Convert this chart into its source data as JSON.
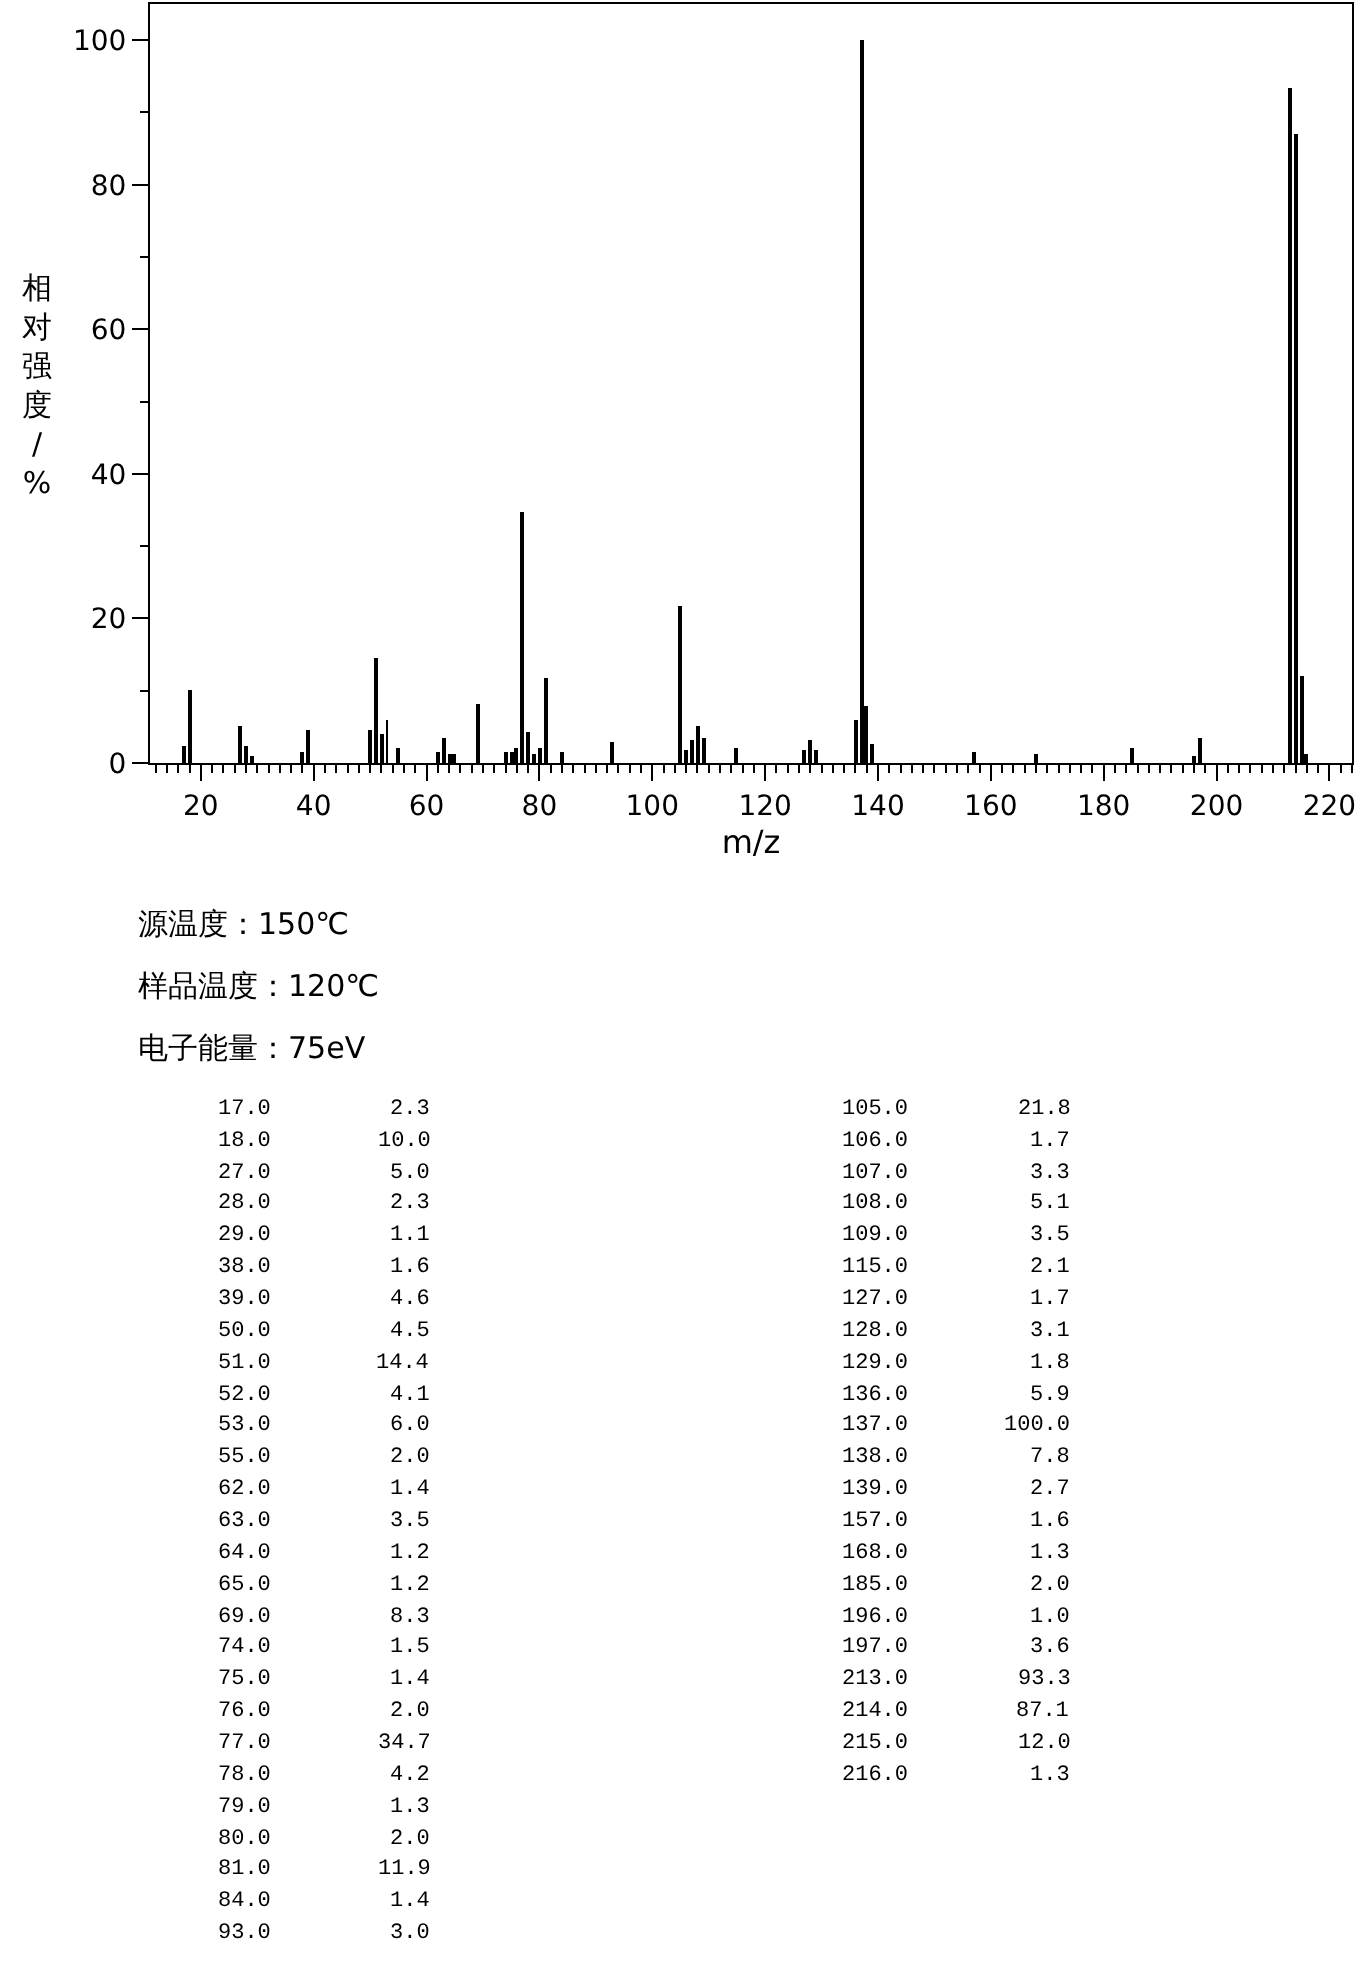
{
  "chart_data": [
    {
      "type": "bar",
      "xlabel": "m/z",
      "ylabel": "相对强度/%",
      "color": "#000000",
      "x": [
        17,
        18,
        27,
        28,
        29,
        38,
        39,
        50,
        51,
        52,
        53,
        55,
        62,
        63,
        64,
        65,
        69,
        74,
        75,
        76,
        77,
        78,
        79,
        80,
        81,
        84,
        93,
        105,
        106,
        107,
        108,
        109,
        115,
        127,
        128,
        129,
        136,
        137,
        138,
        139,
        157,
        168,
        185,
        196,
        197,
        213,
        214,
        215,
        216
      ],
      "values": [
        2.3,
        10.0,
        5.0,
        2.3,
        1.1,
        1.6,
        4.6,
        4.5,
        14.4,
        4.1,
        6.0,
        2.0,
        1.4,
        3.5,
        1.2,
        1.2,
        8.3,
        1.5,
        1.4,
        2.0,
        34.7,
        4.2,
        1.3,
        2.0,
        11.9,
        1.4,
        3.0,
        21.8,
        1.7,
        3.3,
        5.1,
        3.5,
        2.1,
        1.7,
        3.1,
        1.8,
        5.9,
        100.0,
        7.8,
        2.7,
        1.6,
        1.3,
        2.0,
        1.0,
        3.6,
        93.3,
        87.1,
        12.0,
        1.3
      ],
      "xlim": [
        11,
        224
      ],
      "xticks": [
        20,
        40,
        60,
        80,
        100,
        120,
        140,
        160,
        180,
        200,
        220
      ],
      "ylim": [
        0,
        105
      ],
      "yticks": [
        0,
        20,
        40,
        60,
        80,
        100
      ],
      "annotations": [
        "源温度：150℃",
        "样品温度：120℃",
        "电子能量：75eV"
      ]
    },
    {
      "type": "other",
      "annotations": [
        "17.0",
        "2.3",
        "18.0",
        "10.0",
        "27.0",
        "5.0",
        "28.0",
        "2.3",
        "29.0",
        "1.1",
        "38.0",
        "1.6",
        "39.0",
        "4.6",
        "50.0",
        "4.5",
        "51.0",
        "14.4",
        "52.0",
        "4.1",
        "53.0",
        "6.0",
        "55.0",
        "2.0",
        "62.0",
        "1.4",
        "63.0",
        "3.5",
        "64.0",
        "1.2",
        "65.0",
        "1.2",
        "69.0",
        "8.3",
        "74.0",
        "1.5",
        "75.0",
        "1.4",
        "76.0",
        "2.0",
        "77.0",
        "34.7",
        "78.0",
        "4.2",
        "79.0",
        "1.3",
        "80.0",
        "2.0",
        "81.0",
        "11.9",
        "84.0",
        "1.4",
        "93.0",
        "3.0",
        "105.0",
        "21.8",
        "106.0",
        "1.7",
        "107.0",
        "3.3",
        "108.0",
        "5.1",
        "109.0",
        "3.5",
        "115.0",
        "2.1",
        "127.0",
        "1.7",
        "128.0",
        "3.1",
        "129.0",
        "1.8",
        "136.0",
        "5.9",
        "137.0",
        "100.0",
        "138.0",
        "7.8",
        "139.0",
        "2.7",
        "157.0",
        "1.6",
        "168.0",
        "1.3",
        "185.0",
        "2.0",
        "196.0",
        "1.0",
        "197.0",
        "3.6",
        "213.0",
        "93.3",
        "214.0",
        "87.1",
        "215.0",
        "12.0",
        "216.0",
        "1.3"
      ]
    }
  ]
}
